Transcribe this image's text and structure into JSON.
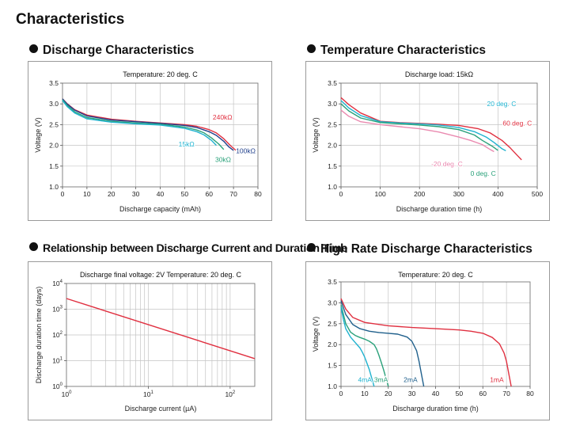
{
  "page": {
    "title": "Characteristics"
  },
  "chart_data": [
    {
      "id": "discharge",
      "type": "line",
      "section_title": "Discharge Characteristics",
      "subtitle": "Temperature: 20 deg. C",
      "xlabel": "Discharge capacity (mAh)",
      "ylabel": "Voltage (V)",
      "xscale": "linear",
      "xlim": [
        0,
        80
      ],
      "ylim": [
        1.0,
        3.5
      ],
      "xticks": [
        0,
        10,
        20,
        30,
        40,
        50,
        60,
        70,
        80
      ],
      "yticks": [
        1.0,
        1.5,
        2.0,
        2.5,
        3.0,
        3.5
      ],
      "ytick_labels": [
        "1.0",
        "1.5",
        "2.0",
        "2.5",
        "3.0",
        "3.5"
      ],
      "grid_x": [
        10,
        20,
        30,
        40,
        50,
        60,
        70
      ],
      "grid_y": [
        1.5,
        2.0,
        2.5,
        3.0
      ],
      "series": [
        {
          "name": "240kΩ",
          "color": "#e03040",
          "x": [
            0,
            2,
            5,
            10,
            20,
            30,
            40,
            50,
            55,
            60,
            63,
            66,
            69,
            71
          ],
          "y": [
            3.12,
            3.0,
            2.86,
            2.73,
            2.63,
            2.58,
            2.54,
            2.5,
            2.46,
            2.38,
            2.3,
            2.16,
            1.98,
            1.88
          ]
        },
        {
          "name": "100kΩ",
          "color": "#20408c",
          "x": [
            0,
            2,
            5,
            10,
            20,
            30,
            40,
            50,
            55,
            60,
            63,
            66,
            68,
            70
          ],
          "y": [
            3.12,
            2.99,
            2.85,
            2.71,
            2.61,
            2.57,
            2.53,
            2.48,
            2.43,
            2.33,
            2.24,
            2.1,
            1.97,
            1.88
          ]
        },
        {
          "name": "30kΩ",
          "color": "#2aa17a",
          "x": [
            0,
            2,
            5,
            10,
            20,
            30,
            40,
            50,
            55,
            58,
            61,
            64,
            66
          ],
          "y": [
            3.1,
            2.96,
            2.81,
            2.67,
            2.58,
            2.54,
            2.51,
            2.44,
            2.37,
            2.3,
            2.18,
            2.03,
            1.9
          ]
        },
        {
          "name": "15kΩ",
          "color": "#1fb2cf",
          "x": [
            0,
            2,
            5,
            10,
            20,
            30,
            40,
            50,
            55,
            58,
            61,
            63
          ],
          "y": [
            3.08,
            2.93,
            2.78,
            2.64,
            2.56,
            2.52,
            2.49,
            2.41,
            2.33,
            2.25,
            2.12,
            2.0
          ]
        }
      ],
      "annotations": [
        {
          "text": "240kΩ",
          "color": "#e03040",
          "x": 61.5,
          "y": 2.62
        },
        {
          "text": "15kΩ",
          "color": "#1fb2cf",
          "x": 47.5,
          "y": 1.97
        },
        {
          "text": "100kΩ",
          "color": "#20408c",
          "x": 71,
          "y": 1.81
        },
        {
          "text": "30kΩ",
          "color": "#2aa17a",
          "x": 62.5,
          "y": 1.6
        }
      ]
    },
    {
      "id": "temperature",
      "type": "line",
      "section_title": "Temperature Characteristics",
      "subtitle": "Discharge load: 15kΩ",
      "xlabel": "Discharge duration time (h)",
      "ylabel": "Voltage (V)",
      "xscale": "linear",
      "xlim": [
        0,
        500
      ],
      "ylim": [
        1.0,
        3.5
      ],
      "xticks": [
        0,
        100,
        200,
        300,
        400,
        500
      ],
      "yticks": [
        1.0,
        1.5,
        2.0,
        2.5,
        3.0,
        3.5
      ],
      "ytick_labels": [
        "1.0",
        "1.5",
        "2.0",
        "2.5",
        "3.0",
        "3.5"
      ],
      "grid_x": [
        100,
        200,
        300,
        400
      ],
      "grid_y": [
        1.5,
        2.0,
        2.5,
        3.0
      ],
      "series": [
        {
          "name": "60 deg. C",
          "color": "#e03040",
          "x": [
            0,
            20,
            50,
            100,
            150,
            200,
            250,
            300,
            350,
            380,
            410,
            430,
            450,
            460
          ],
          "y": [
            3.15,
            2.98,
            2.78,
            2.58,
            2.55,
            2.53,
            2.51,
            2.48,
            2.4,
            2.3,
            2.12,
            1.95,
            1.75,
            1.65
          ]
        },
        {
          "name": "20 deg. C",
          "color": "#1fb2cf",
          "x": [
            0,
            20,
            50,
            100,
            150,
            200,
            250,
            300,
            340,
            370,
            390,
            410,
            420
          ],
          "y": [
            3.08,
            2.9,
            2.72,
            2.57,
            2.54,
            2.52,
            2.49,
            2.43,
            2.33,
            2.2,
            2.07,
            1.92,
            1.87
          ]
        },
        {
          "name": "0 deg. C",
          "color": "#2aa17a",
          "x": [
            0,
            20,
            50,
            100,
            150,
            200,
            250,
            300,
            340,
            360,
            385,
            400
          ],
          "y": [
            3.0,
            2.83,
            2.66,
            2.55,
            2.52,
            2.49,
            2.45,
            2.38,
            2.25,
            2.12,
            1.98,
            1.88
          ]
        },
        {
          "name": "-20 deg. C",
          "color": "#ea8ab0",
          "x": [
            0,
            20,
            50,
            100,
            150,
            200,
            250,
            300,
            330,
            360,
            380,
            390
          ],
          "y": [
            2.85,
            2.7,
            2.57,
            2.5,
            2.45,
            2.4,
            2.32,
            2.2,
            2.12,
            2.02,
            1.9,
            1.85
          ]
        }
      ],
      "annotations": [
        {
          "text": "20 deg. C",
          "color": "#1fb2cf",
          "x": 372,
          "y": 2.95
        },
        {
          "text": "60 deg. C",
          "color": "#e03040",
          "x": 412,
          "y": 2.48
        },
        {
          "text": "-20 deg. C",
          "color": "#ea8ab0",
          "x": 230,
          "y": 1.5
        },
        {
          "text": "0 deg. C",
          "color": "#2aa17a",
          "x": 330,
          "y": 1.27
        }
      ]
    },
    {
      "id": "current",
      "type": "line",
      "section_title": "Relationship between Discharge Current and Duration Time",
      "subtitle": "Discharge final voltage: 2V   Temperature: 20 deg. C",
      "xlabel": "Discharge current (µA)",
      "ylabel": "Discharge duration time (days)",
      "xscale": "log",
      "yscale": "log",
      "xlim": [
        1,
        200
      ],
      "ylim": [
        1,
        10000
      ],
      "xticks": [
        1,
        10,
        100
      ],
      "xtick_labels": [
        {
          "base": "10",
          "exp": "0"
        },
        {
          "base": "10",
          "exp": "1"
        },
        {
          "base": "10",
          "exp": "2"
        }
      ],
      "yticks": [
        1,
        10,
        100,
        1000,
        10000
      ],
      "ytick_labels": [
        {
          "base": "10",
          "exp": "0"
        },
        {
          "base": "10",
          "exp": "1"
        },
        {
          "base": "10",
          "exp": "2"
        },
        {
          "base": "10",
          "exp": "3"
        },
        {
          "base": "10",
          "exp": "4"
        }
      ],
      "grid_x": [
        2,
        3,
        4,
        5,
        6,
        7,
        8,
        9,
        10,
        20,
        30,
        40,
        50,
        60,
        70,
        80,
        90,
        100
      ],
      "grid_y": [
        10,
        100,
        1000
      ],
      "series": [
        {
          "name": "Discharge duration",
          "color": "#e03040",
          "x": [
            1,
            200
          ],
          "y": [
            2600,
            12
          ]
        }
      ],
      "annotations": []
    },
    {
      "id": "highrate",
      "type": "line",
      "section_title": "High Rate Discharge Characteristics",
      "subtitle": "Temperature: 20 deg. C",
      "xlabel": "Discharge duration time (h)",
      "ylabel": "Voltage (V)",
      "xscale": "linear",
      "xlim": [
        0,
        80
      ],
      "ylim": [
        1.0,
        3.5
      ],
      "xticks": [
        0,
        10,
        20,
        30,
        40,
        50,
        60,
        70,
        80
      ],
      "yticks": [
        1.0,
        1.5,
        2.0,
        2.5,
        3.0,
        3.5
      ],
      "ytick_labels": [
        "1.0",
        "1.5",
        "2.0",
        "2.5",
        "3.0",
        "3.5"
      ],
      "grid_x": [
        10,
        20,
        30,
        40,
        50,
        60,
        70
      ],
      "grid_y": [
        1.5,
        2.0,
        2.5,
        3.0
      ],
      "series": [
        {
          "name": "1mA",
          "color": "#e03040",
          "x": [
            0,
            2,
            5,
            10,
            20,
            30,
            40,
            50,
            55,
            60,
            64,
            67,
            69,
            70,
            71,
            72
          ],
          "y": [
            3.1,
            2.85,
            2.65,
            2.53,
            2.45,
            2.41,
            2.38,
            2.35,
            2.32,
            2.27,
            2.17,
            2.02,
            1.8,
            1.6,
            1.3,
            1.0
          ]
        },
        {
          "name": "2mA",
          "color": "#20608c",
          "x": [
            0,
            2,
            5,
            8,
            12,
            16,
            20,
            24,
            28,
            30,
            32,
            33,
            34,
            35
          ],
          "y": [
            3.05,
            2.72,
            2.48,
            2.38,
            2.32,
            2.29,
            2.27,
            2.25,
            2.18,
            2.08,
            1.85,
            1.6,
            1.3,
            1.0
          ]
        },
        {
          "name": "3mA",
          "color": "#2aa17a",
          "x": [
            0,
            2,
            4,
            6,
            8,
            10,
            12,
            14,
            15,
            16,
            17,
            18,
            19,
            20
          ],
          "y": [
            2.95,
            2.5,
            2.3,
            2.22,
            2.17,
            2.13,
            2.08,
            2.0,
            1.9,
            1.75,
            1.58,
            1.4,
            1.2,
            1.0
          ]
        },
        {
          "name": "4mA",
          "color": "#1fb2cf",
          "x": [
            0,
            1,
            2,
            4,
            6,
            8,
            9,
            10,
            11,
            12,
            13,
            14
          ],
          "y": [
            2.9,
            2.6,
            2.38,
            2.18,
            2.05,
            1.92,
            1.82,
            1.7,
            1.55,
            1.4,
            1.2,
            1.0
          ]
        }
      ],
      "annotations": [
        {
          "text": "4mA",
          "color": "#1fb2cf",
          "x": 7.2,
          "y": 1.1
        },
        {
          "text": "3mA",
          "color": "#2aa17a",
          "x": 14,
          "y": 1.1
        },
        {
          "text": "2mA",
          "color": "#20608c",
          "x": 26.5,
          "y": 1.1
        },
        {
          "text": "1mA",
          "color": "#e03040",
          "x": 63,
          "y": 1.1
        }
      ]
    }
  ]
}
